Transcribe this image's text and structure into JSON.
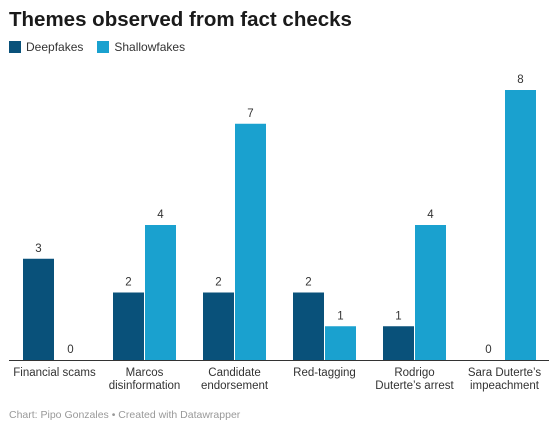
{
  "header": {
    "title": "Themes observed from fact checks"
  },
  "footer": {
    "credit": "Chart: Pipo Gonzales • Created with Datawrapper"
  },
  "chart_data": {
    "type": "bar",
    "title": "Themes observed from fact checks",
    "categories": [
      [
        "Financial scams"
      ],
      [
        "Marcos",
        "disinformation"
      ],
      [
        "Candidate",
        "endorsement"
      ],
      [
        "Red-tagging"
      ],
      [
        "Rodrigo",
        "Duterte’s arrest"
      ],
      [
        "Sara Duterte’s",
        "impeachment"
      ]
    ],
    "series": [
      {
        "name": "Deepfakes",
        "color": "#09517a",
        "values": [
          3,
          2,
          2,
          2,
          1,
          0
        ]
      },
      {
        "name": "Shallowfakes",
        "color": "#1aa1cf",
        "values": [
          0,
          4,
          7,
          1,
          4,
          8
        ]
      }
    ],
    "ylim": [
      0,
      8
    ],
    "xlabel": "",
    "ylabel": "",
    "grid": false,
    "legend": "top-left",
    "data_labels": true
  }
}
